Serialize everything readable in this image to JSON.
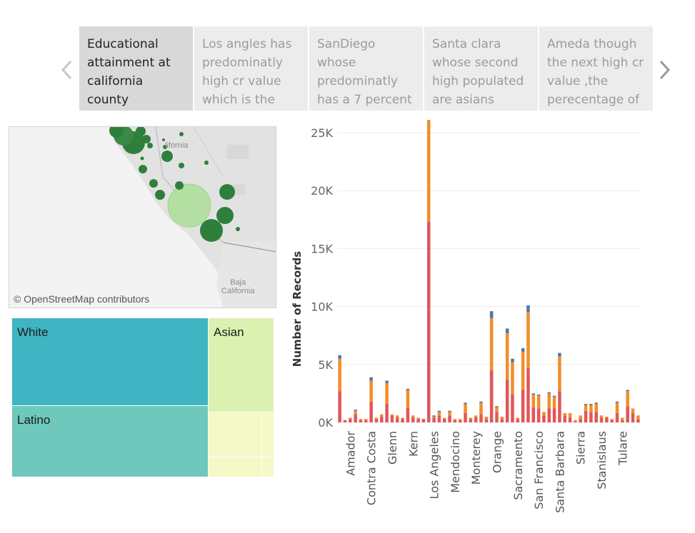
{
  "story": {
    "points": [
      {
        "text": "Educational attainment at california county",
        "active": true
      },
      {
        "text": "Los angles has predominatly high cr value which is the",
        "active": false
      },
      {
        "text": "SanDiego whose predominatly has a 7 percent",
        "active": false
      },
      {
        "text": "Santa clara whose second high populated are asians",
        "active": false
      },
      {
        "text": "Ameda though the next high cr value ,the perecentage of",
        "active": false
      }
    ],
    "prev_icon": "chevron-left-icon",
    "next_icon": "chevron-right-icon"
  },
  "map": {
    "attribution": "© OpenStreetMap contributors",
    "label_california": "lifornia",
    "label_baja": "Baja\nCalifornia"
  },
  "treemap": {
    "tiles": [
      {
        "label": "White",
        "color": "#3fb5c3"
      },
      {
        "label": "Latino",
        "color": "#6fc8bc"
      },
      {
        "label": "Asian",
        "color": "#daf1b2"
      },
      {
        "label": "",
        "color": "#f4f9c7"
      }
    ]
  },
  "colors": {
    "red": "#e15759",
    "orange": "#f28e2b",
    "blue": "#4e79a7",
    "map_dark_green": "#2e7d3a",
    "map_light_green": "#b4dfa3"
  },
  "chart_data": {
    "type": "bar",
    "stacked": true,
    "ylabel": "Number of Records",
    "yticks": [
      "0K",
      "5K",
      "10K",
      "15K",
      "20K",
      "25K"
    ],
    "ylim": [
      0,
      25000
    ],
    "xtick_labels": [
      "Amador",
      "Contra Costa",
      "Glenn",
      "Kern",
      "Los Angeles",
      "Mendocino",
      "Monterey",
      "Orange",
      "Sacramento",
      "San Francisco",
      "Santa Barbara",
      "Sierra",
      "Stanislaus",
      "Tulare"
    ],
    "xtick_positions": [
      2,
      6,
      10,
      14,
      18,
      22,
      26,
      30,
      34,
      38,
      42,
      46,
      50,
      54
    ],
    "bar_count": 58,
    "series": [
      {
        "name": "",
        "color": "#e15759",
        "values": [
          2700,
          200,
          300,
          700,
          200,
          200,
          1800,
          300,
          500,
          1600,
          600,
          400,
          300,
          1300,
          400,
          300,
          300,
          17300,
          400,
          600,
          300,
          600,
          200,
          200,
          800,
          300,
          400,
          700,
          300,
          4500,
          900,
          300,
          3700,
          2400,
          300,
          2800,
          4700,
          1300,
          1200,
          600,
          1200,
          1200,
          2700,
          600,
          400,
          100,
          300,
          1000,
          900,
          900,
          400,
          400,
          200,
          800,
          200,
          1400,
          800,
          300
        ]
      },
      {
        "name": "",
        "color": "#f28e2b",
        "values": [
          2800,
          0,
          100,
          300,
          100,
          100,
          1800,
          100,
          200,
          1800,
          100,
          200,
          100,
          1500,
          200,
          100,
          0,
          9000,
          100,
          300,
          100,
          300,
          100,
          100,
          800,
          100,
          200,
          1000,
          200,
          4500,
          400,
          200,
          4000,
          2800,
          100,
          3300,
          4800,
          1100,
          1100,
          300,
          1300,
          1000,
          3000,
          200,
          400,
          100,
          300,
          500,
          600,
          700,
          200,
          100,
          100,
          900,
          200,
          1300,
          400,
          300
        ]
      },
      {
        "name": "",
        "color": "#4e79a7",
        "values": [
          300,
          0,
          0,
          100,
          0,
          0,
          300,
          0,
          0,
          200,
          0,
          0,
          0,
          100,
          0,
          0,
          0,
          0,
          100,
          100,
          0,
          100,
          0,
          0,
          100,
          0,
          0,
          100,
          0,
          600,
          100,
          0,
          400,
          300,
          0,
          300,
          600,
          100,
          100,
          0,
          100,
          100,
          300,
          0,
          0,
          0,
          0,
          100,
          100,
          100,
          0,
          0,
          0,
          100,
          0,
          100,
          0,
          0
        ]
      }
    ]
  }
}
